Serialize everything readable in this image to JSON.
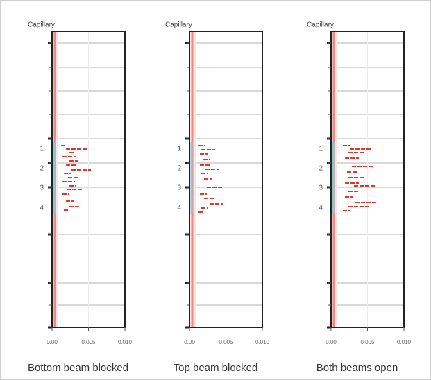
{
  "panels": [
    {
      "title": "Capillary",
      "y_labels": [
        "1",
        "2",
        "3",
        "4"
      ],
      "x_ticks": [
        "0.00",
        "0.005",
        "0.010"
      ],
      "caption": "Bottom beam blocked"
    },
    {
      "title": "Capillary",
      "y_labels": [
        "1",
        "2",
        "3",
        "4"
      ],
      "x_ticks": [
        "0.00",
        "0.005",
        "0.010"
      ],
      "caption": "Top beam blocked"
    },
    {
      "title": "Capillary",
      "y_labels": [
        "1",
        "2",
        "3",
        "4"
      ],
      "x_ticks": [
        "0.00",
        "0.005",
        "0.010"
      ],
      "caption": "Both beams open"
    }
  ]
}
